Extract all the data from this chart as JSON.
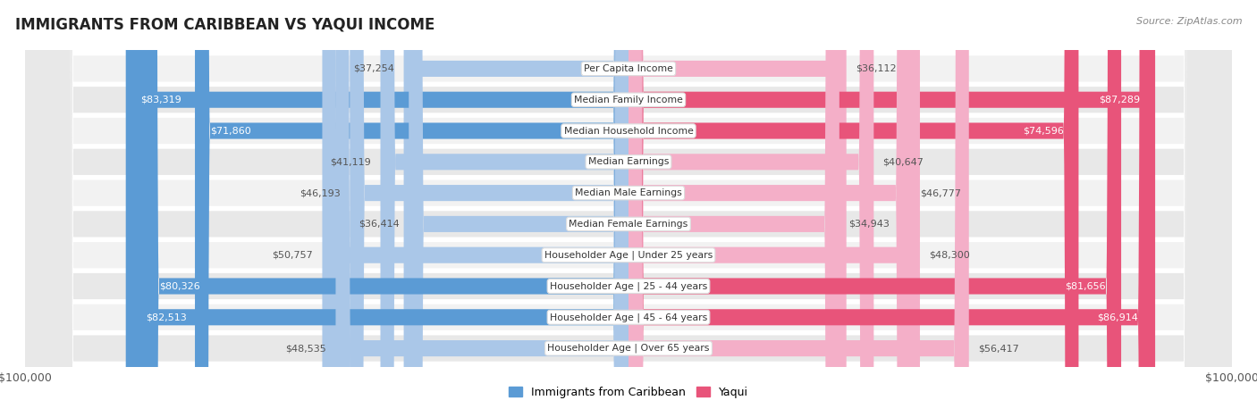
{
  "title": "IMMIGRANTS FROM CARIBBEAN VS YAQUI INCOME",
  "source": "Source: ZipAtlas.com",
  "categories": [
    "Per Capita Income",
    "Median Family Income",
    "Median Household Income",
    "Median Earnings",
    "Median Male Earnings",
    "Median Female Earnings",
    "Householder Age | Under 25 years",
    "Householder Age | 25 - 44 years",
    "Householder Age | 45 - 64 years",
    "Householder Age | Over 65 years"
  ],
  "caribbean_values": [
    37254,
    83319,
    71860,
    41119,
    46193,
    36414,
    50757,
    80326,
    82513,
    48535
  ],
  "yaqui_values": [
    36112,
    87289,
    74596,
    40647,
    46777,
    34943,
    48300,
    81656,
    86914,
    56417
  ],
  "caribbean_labels": [
    "$37,254",
    "$83,319",
    "$71,860",
    "$41,119",
    "$46,193",
    "$36,414",
    "$50,757",
    "$80,326",
    "$82,513",
    "$48,535"
  ],
  "yaqui_labels": [
    "$36,112",
    "$87,289",
    "$74,596",
    "$40,647",
    "$46,777",
    "$34,943",
    "$48,300",
    "$81,656",
    "$86,914",
    "$56,417"
  ],
  "max_value": 100000,
  "caribbean_color_light": "#aac7e8",
  "caribbean_color_dark": "#5b9bd5",
  "yaqui_color_light": "#f4afc8",
  "yaqui_color_dark": "#e8547a",
  "bar_height": 0.52,
  "row_bg_light": "#f2f2f2",
  "row_bg_dark": "#e8e8e8",
  "fig_bg": "#ffffff",
  "legend_caribbean": "Immigrants from Caribbean",
  "legend_yaqui": "Yaqui",
  "xlabel_left": "$100,000",
  "xlabel_right": "$100,000",
  "dark_threshold": 60000
}
